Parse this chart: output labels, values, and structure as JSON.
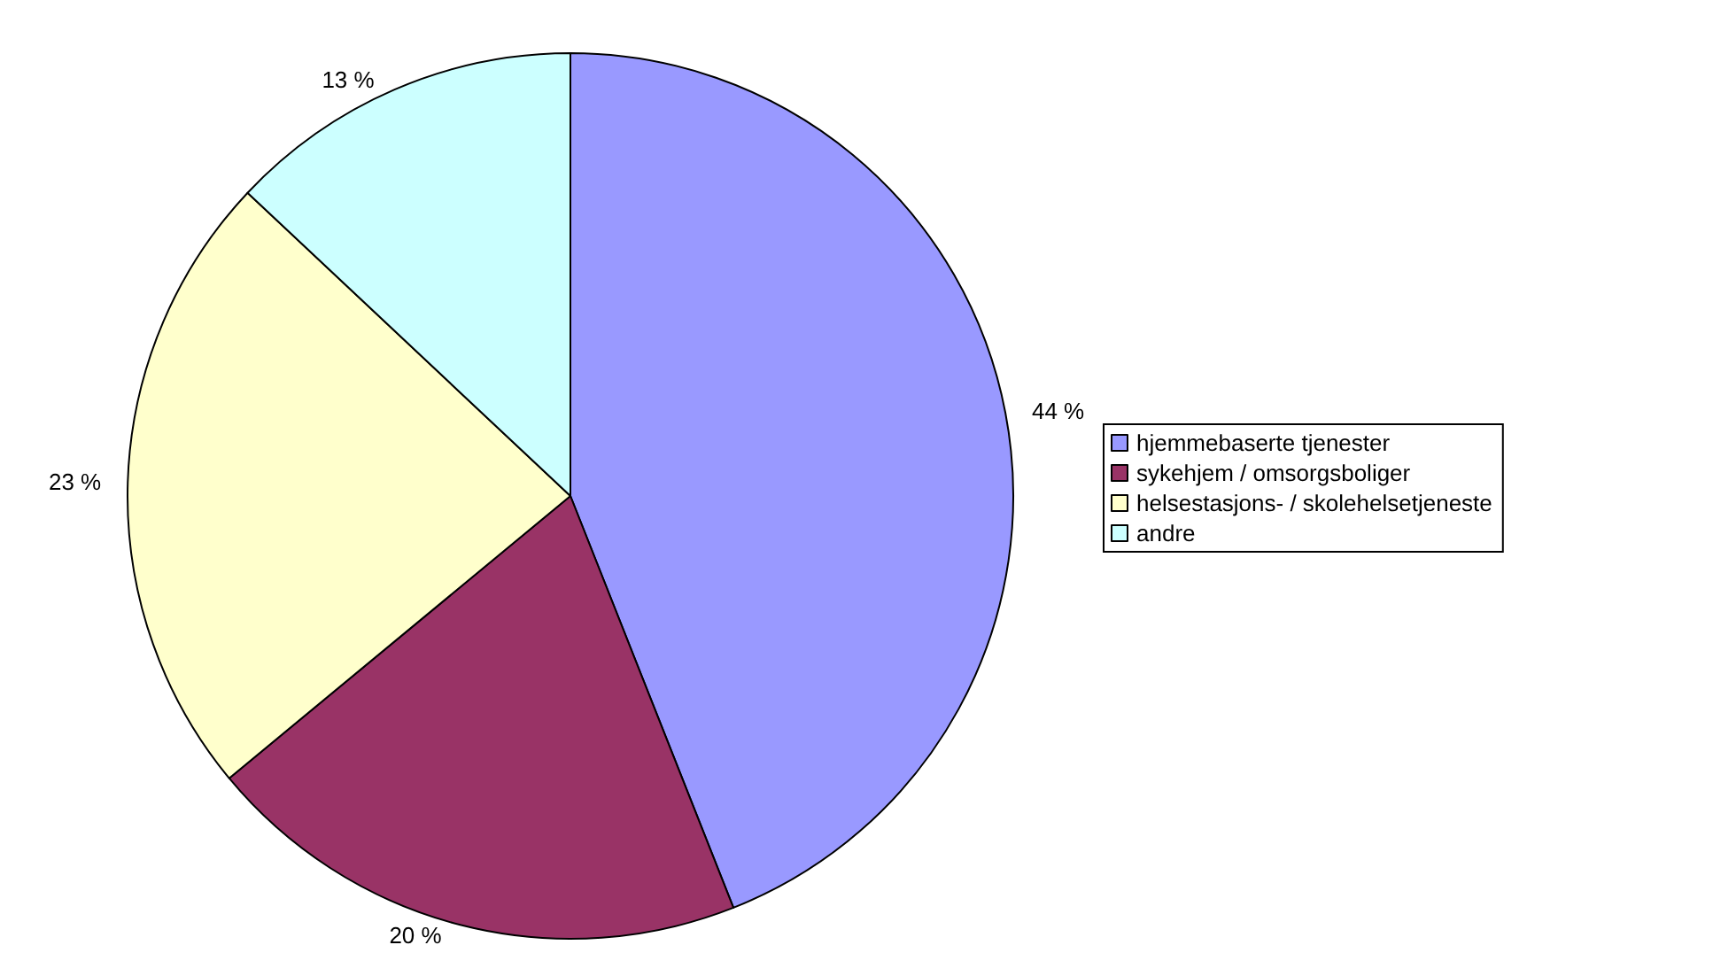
{
  "chart_data": {
    "type": "pie",
    "categories": [
      "hjemmebaserte tjenester",
      "sykehjem / omsorgsboliger",
      "helsestasjons- / skolehelsetjeneste",
      "andre"
    ],
    "values": [
      44,
      20,
      23,
      13
    ],
    "value_labels": [
      "44 %",
      "20 %",
      "23 %",
      "13 %"
    ],
    "colors": [
      "#9999ff",
      "#993366",
      "#ffffcc",
      "#ccffff"
    ],
    "legend": "right"
  }
}
